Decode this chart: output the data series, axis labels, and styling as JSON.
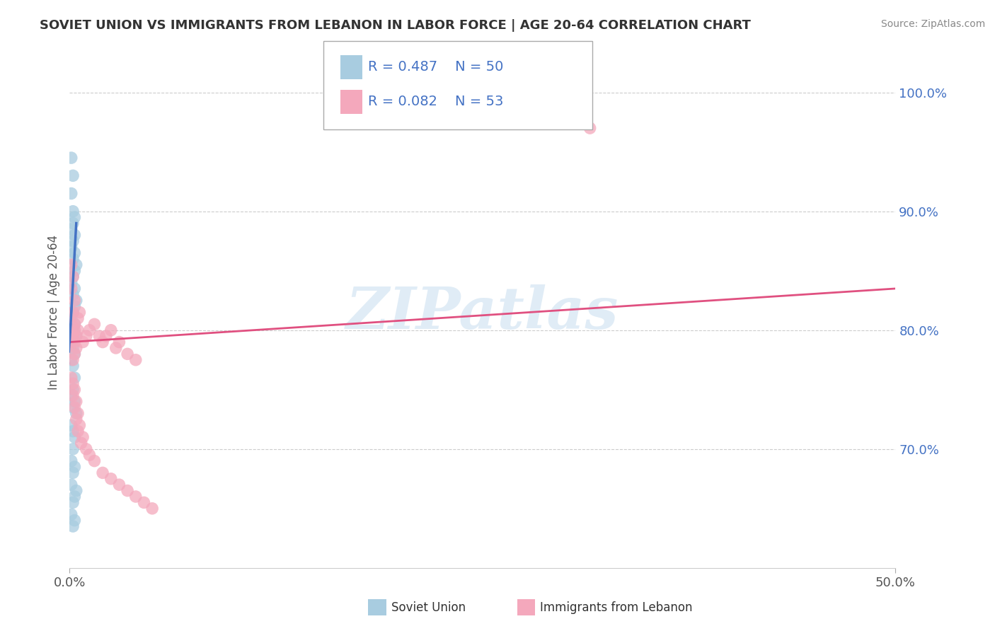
{
  "title": "SOVIET UNION VS IMMIGRANTS FROM LEBANON IN LABOR FORCE | AGE 20-64 CORRELATION CHART",
  "source": "Source: ZipAtlas.com",
  "ylabel": "In Labor Force | Age 20-64",
  "xlim": [
    0.0,
    0.5
  ],
  "ylim": [
    0.6,
    1.03
  ],
  "xtick_positions": [
    0.0,
    0.5
  ],
  "xticklabels": [
    "0.0%",
    "50.0%"
  ],
  "ytick_positions": [
    0.7,
    0.8,
    0.9,
    1.0
  ],
  "yticklabels": [
    "70.0%",
    "80.0%",
    "90.0%",
    "100.0%"
  ],
  "legend_r1": "R = 0.487",
  "legend_n1": "N = 50",
  "legend_r2": "R = 0.082",
  "legend_n2": "N = 53",
  "color_soviet": "#a8cce0",
  "color_lebanon": "#f4a8bc",
  "color_soviet_line": "#4472c4",
  "color_lebanon_line": "#e05080",
  "color_legend_text": "#4472c4",
  "watermark": "ZIPatlas",
  "watermark_color": "#cce0f0",
  "grid_color": "#cccccc",
  "bg_color": "#ffffff",
  "title_color": "#333333",
  "source_color": "#888888",
  "ylabel_color": "#555555",
  "tick_color": "#555555",
  "ytick_color": "#4472c4",
  "soviet_x": [
    0.001,
    0.002,
    0.001,
    0.002,
    0.003,
    0.002,
    0.001,
    0.003,
    0.002,
    0.001,
    0.003,
    0.002,
    0.004,
    0.003,
    0.002,
    0.001,
    0.003,
    0.002,
    0.004,
    0.003,
    0.002,
    0.001,
    0.003,
    0.002,
    0.004,
    0.001,
    0.002,
    0.003,
    0.001,
    0.002,
    0.003,
    0.002,
    0.001,
    0.003,
    0.002,
    0.004,
    0.001,
    0.002,
    0.003,
    0.002,
    0.001,
    0.003,
    0.002,
    0.001,
    0.004,
    0.003,
    0.002,
    0.001,
    0.003,
    0.002
  ],
  "soviet_y": [
    0.945,
    0.93,
    0.915,
    0.9,
    0.895,
    0.89,
    0.885,
    0.88,
    0.875,
    0.87,
    0.865,
    0.86,
    0.855,
    0.85,
    0.845,
    0.84,
    0.835,
    0.83,
    0.825,
    0.82,
    0.815,
    0.81,
    0.805,
    0.8,
    0.795,
    0.79,
    0.785,
    0.78,
    0.775,
    0.77,
    0.76,
    0.75,
    0.745,
    0.74,
    0.735,
    0.73,
    0.72,
    0.715,
    0.71,
    0.7,
    0.69,
    0.685,
    0.68,
    0.67,
    0.665,
    0.66,
    0.655,
    0.645,
    0.64,
    0.635
  ],
  "lebanon_x": [
    0.001,
    0.002,
    0.001,
    0.003,
    0.002,
    0.001,
    0.003,
    0.002,
    0.001,
    0.004,
    0.003,
    0.002,
    0.005,
    0.004,
    0.003,
    0.006,
    0.005,
    0.003,
    0.01,
    0.008,
    0.015,
    0.012,
    0.018,
    0.02,
    0.025,
    0.022,
    0.03,
    0.028,
    0.035,
    0.04,
    0.001,
    0.002,
    0.003,
    0.002,
    0.004,
    0.003,
    0.005,
    0.004,
    0.006,
    0.005,
    0.008,
    0.007,
    0.01,
    0.012,
    0.015,
    0.02,
    0.025,
    0.03,
    0.035,
    0.04,
    0.045,
    0.05,
    0.315
  ],
  "lebanon_y": [
    0.855,
    0.845,
    0.835,
    0.825,
    0.815,
    0.805,
    0.8,
    0.795,
    0.79,
    0.785,
    0.78,
    0.775,
    0.8,
    0.795,
    0.79,
    0.815,
    0.81,
    0.805,
    0.795,
    0.79,
    0.805,
    0.8,
    0.795,
    0.79,
    0.8,
    0.795,
    0.79,
    0.785,
    0.78,
    0.775,
    0.76,
    0.755,
    0.75,
    0.745,
    0.74,
    0.735,
    0.73,
    0.725,
    0.72,
    0.715,
    0.71,
    0.705,
    0.7,
    0.695,
    0.69,
    0.68,
    0.675,
    0.67,
    0.665,
    0.66,
    0.655,
    0.65,
    0.97
  ],
  "bottom_legend_labels": [
    "Soviet Union",
    "Immigrants from Lebanon"
  ]
}
